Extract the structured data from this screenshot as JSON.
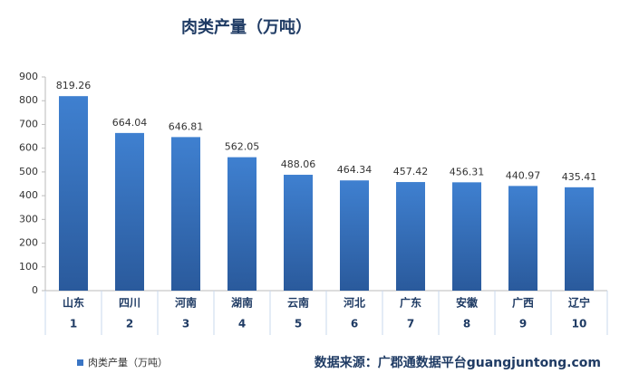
{
  "chart_data": {
    "type": "bar",
    "title": "肉类产量（万吨）",
    "categories": [
      "山东",
      "四川",
      "河南",
      "湖南",
      "云南",
      "河北",
      "广东",
      "安徽",
      "广西",
      "辽宁"
    ],
    "ranks": [
      1,
      2,
      3,
      4,
      5,
      6,
      7,
      8,
      9,
      10
    ],
    "series": [
      {
        "name": "肉类产量（万吨）",
        "color": "#3a75c4",
        "values": [
          819.26,
          664.04,
          646.81,
          562.05,
          488.06,
          464.34,
          457.42,
          456.31,
          440.97,
          435.41
        ]
      }
    ],
    "ylim": [
      0,
      900
    ],
    "yticks": [
      0,
      100,
      200,
      300,
      400,
      500,
      600,
      700,
      800,
      900
    ],
    "grid": false,
    "legend": "bottom-left",
    "source": "数据来源：广郡通数据平台guangjuntong.com"
  }
}
